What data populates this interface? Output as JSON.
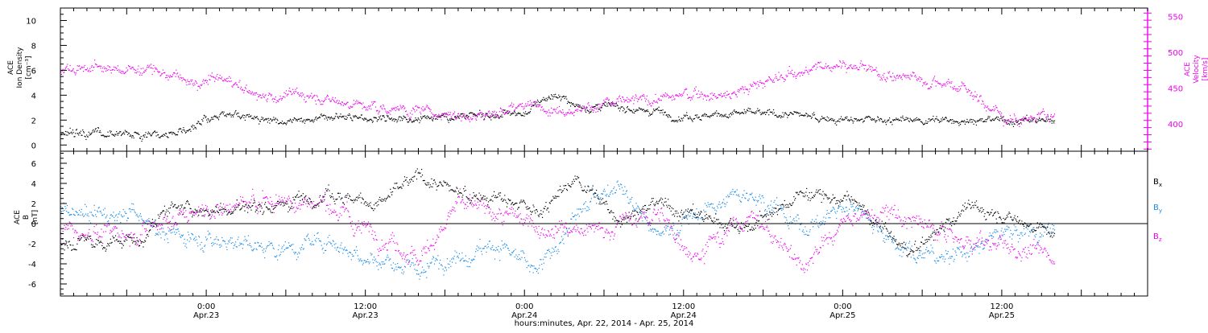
{
  "colors": {
    "black": "#000000",
    "magenta": "#ee00ee",
    "blue": "#1a8ce6"
  },
  "time_axis": {
    "start": "2014-04-22 13:00",
    "end": "2014-04-25 23:00",
    "data_end": "2014-04-25 16:00",
    "xlabel": "hours:minutes, Apr. 22, 2014 - Apr. 25, 2014",
    "ticks": [
      {
        "time": "2014-04-23 00:00",
        "hhmm": "0:00",
        "date": "Apr.23"
      },
      {
        "time": "2014-04-23 12:00",
        "hhmm": "12:00",
        "date": "Apr.23"
      },
      {
        "time": "2014-04-24 00:00",
        "hhmm": "0:00",
        "date": "Apr.24"
      },
      {
        "time": "2014-04-24 12:00",
        "hhmm": "12:00",
        "date": "Apr.24"
      },
      {
        "time": "2014-04-25 00:00",
        "hhmm": "0:00",
        "date": "Apr.25"
      },
      {
        "time": "2014-04-25 12:00",
        "hhmm": "12:00",
        "date": "Apr.25"
      }
    ]
  },
  "chart_data": [
    {
      "type": "scatter",
      "panel": "top",
      "left_axis": {
        "label": [
          "ACE",
          "Ion Density",
          "[cm⁻³]"
        ],
        "ylim": [
          -0.5,
          11
        ],
        "ticks": [
          0,
          2,
          4,
          6,
          8,
          10
        ]
      },
      "right_axis": {
        "label": [
          "ACE",
          "Velocity",
          "[km/s]"
        ],
        "ylim": [
          362,
          562
        ],
        "ticks": [
          400,
          450,
          500,
          550
        ]
      },
      "series": [
        {
          "axis": "left",
          "color": "#000000",
          "x": [
            "2014-04-22 13:00",
            "2014-04-22 17:00",
            "2014-04-22 21:00",
            "2014-04-22 23:00",
            "2014-04-23 01:00",
            "2014-04-23 04:00",
            "2014-04-23 08:00",
            "2014-04-23 12:00",
            "2014-04-23 16:00",
            "2014-04-23 20:00",
            "2014-04-24 00:00",
            "2014-04-24 02:00",
            "2014-04-24 04:00",
            "2014-04-24 06:00",
            "2014-04-24 08:00",
            "2014-04-24 10:00",
            "2014-04-24 12:00",
            "2014-04-24 16:00",
            "2014-04-24 20:00",
            "2014-04-25 00:00",
            "2014-04-25 04:00",
            "2014-04-25 08:00",
            "2014-04-25 12:00",
            "2014-04-25 16:00"
          ],
          "y": [
            0.9,
            0.9,
            1.0,
            1.5,
            2.5,
            2.2,
            2.0,
            2.2,
            2.3,
            2.3,
            2.6,
            4.0,
            3.2,
            3.0,
            3.0,
            2.8,
            2.3,
            2.6,
            2.5,
            2.0,
            2.0,
            2.0,
            2.0,
            2.1
          ]
        },
        {
          "axis": "right",
          "color": "#ee00ee",
          "x": [
            "2014-04-22 13:00",
            "2014-04-22 17:00",
            "2014-04-22 20:00",
            "2014-04-22 23:00",
            "2014-04-23 01:00",
            "2014-04-23 04:00",
            "2014-04-23 08:00",
            "2014-04-23 12:00",
            "2014-04-23 16:00",
            "2014-04-23 20:00",
            "2014-04-24 00:00",
            "2014-04-24 04:00",
            "2014-04-24 08:00",
            "2014-04-24 12:00",
            "2014-04-24 16:00",
            "2014-04-24 19:00",
            "2014-04-24 22:00",
            "2014-04-25 00:00",
            "2014-04-25 03:00",
            "2014-04-25 06:00",
            "2014-04-25 09:00",
            "2014-04-25 12:00",
            "2014-04-25 16:00"
          ],
          "y": [
            478,
            477,
            477,
            455,
            465,
            440,
            440,
            425,
            420,
            412,
            425,
            422,
            432,
            440,
            445,
            465,
            478,
            485,
            470,
            462,
            455,
            410,
            410
          ]
        }
      ]
    },
    {
      "type": "scatter",
      "panel": "bottom",
      "left_axis": {
        "label": [
          "ACE",
          "B",
          "[nT]"
        ],
        "ylim": [
          -7.2,
          7.2
        ],
        "ticks": [
          -6,
          -4,
          -2,
          0,
          2,
          4,
          6
        ]
      },
      "zero_line": true,
      "series": [
        {
          "name": "Bx",
          "color": "#000000",
          "x": [
            "2014-04-22 13:00",
            "2014-04-22 19:00",
            "2014-04-22 21:00",
            "2014-04-23 01:00",
            "2014-04-23 05:00",
            "2014-04-23 09:00",
            "2014-04-23 13:00",
            "2014-04-23 16:00",
            "2014-04-23 19:00",
            "2014-04-23 22:00",
            "2014-04-24 01:00",
            "2014-04-24 04:00",
            "2014-04-24 07:00",
            "2014-04-24 10:00",
            "2014-04-24 13:00",
            "2014-04-24 17:00",
            "2014-04-24 21:00",
            "2014-04-25 01:00",
            "2014-04-25 05:00",
            "2014-04-25 09:00",
            "2014-04-25 12:00",
            "2014-04-25 16:00"
          ],
          "y": [
            -1.8,
            -1.7,
            1.5,
            1.3,
            2.0,
            3.2,
            2.0,
            4.8,
            3.0,
            2.5,
            1.0,
            4.5,
            0.5,
            2.0,
            1.0,
            -0.5,
            3.2,
            2.0,
            -3.0,
            1.5,
            1.0,
            -1.0
          ]
        },
        {
          "name": "By",
          "color": "#1a8ce6",
          "x": [
            "2014-04-22 13:00",
            "2014-04-22 19:00",
            "2014-04-22 21:00",
            "2014-04-23 01:00",
            "2014-04-23 05:00",
            "2014-04-23 09:00",
            "2014-04-23 13:00",
            "2014-04-23 16:00",
            "2014-04-23 19:00",
            "2014-04-23 22:00",
            "2014-04-24 01:00",
            "2014-04-24 04:00",
            "2014-04-24 07:00",
            "2014-04-24 10:00",
            "2014-04-24 13:00",
            "2014-04-24 17:00",
            "2014-04-24 21:00",
            "2014-04-25 01:00",
            "2014-04-25 05:00",
            "2014-04-25 09:00",
            "2014-04-25 12:00",
            "2014-04-25 16:00"
          ],
          "y": [
            1.2,
            1.0,
            -1.0,
            -1.5,
            -2.5,
            -1.5,
            -3.5,
            -5.0,
            -3.0,
            -2.0,
            -5.0,
            1.0,
            4.5,
            -1.0,
            1.0,
            3.5,
            -0.5,
            2.0,
            -3.0,
            -3.0,
            -1.0,
            -0.5
          ]
        },
        {
          "name": "Bz",
          "color": "#ee00ee",
          "x": [
            "2014-04-22 13:00",
            "2014-04-22 19:00",
            "2014-04-22 21:00",
            "2014-04-23 01:00",
            "2014-04-23 05:00",
            "2014-04-23 09:00",
            "2014-04-23 13:00",
            "2014-04-23 16:00",
            "2014-04-23 19:00",
            "2014-04-23 22:00",
            "2014-04-24 01:00",
            "2014-04-24 04:00",
            "2014-04-24 07:00",
            "2014-04-24 10:00",
            "2014-04-24 13:00",
            "2014-04-24 17:00",
            "2014-04-24 21:00",
            "2014-04-25 01:00",
            "2014-04-25 05:00",
            "2014-04-25 09:00",
            "2014-04-25 12:00",
            "2014-04-25 16:00"
          ],
          "y": [
            -0.8,
            -0.8,
            0.5,
            1.5,
            2.5,
            2.0,
            -1.0,
            -3.5,
            2.0,
            1.0,
            0.0,
            -1.0,
            0.0,
            1.0,
            -3.0,
            1.0,
            -4.0,
            1.0,
            0.5,
            -2.0,
            -2.0,
            -3.5
          ]
        }
      ]
    }
  ],
  "legend": {
    "bx": {
      "base": "B",
      "sub": "x",
      "color": "#000000"
    },
    "by": {
      "base": "B",
      "sub": "y",
      "color": "#1a8ce6"
    },
    "bz": {
      "base": "B",
      "sub": "z",
      "color": "#ee00ee"
    }
  }
}
